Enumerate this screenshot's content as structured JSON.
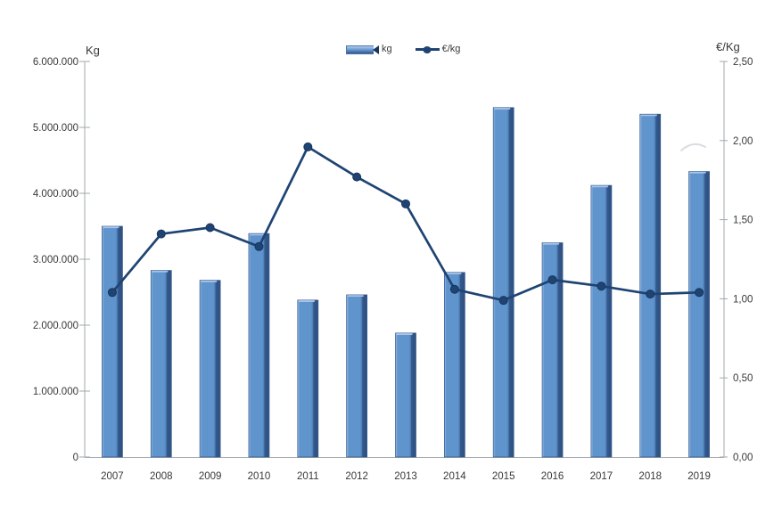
{
  "legend": {
    "items": [
      {
        "label": "kg",
        "swatch": "bar-swatch"
      },
      {
        "label": "€/kg",
        "swatch": "line-marker-swatch"
      }
    ]
  },
  "chart_data": {
    "type": "bar",
    "combo_types": [
      "bar",
      "line"
    ],
    "title": "",
    "categories": [
      "2007",
      "2008",
      "2009",
      "2010",
      "2011",
      "2012",
      "2013",
      "2014",
      "2015",
      "2016",
      "2017",
      "2018",
      "2019"
    ],
    "series": [
      {
        "name": "kg",
        "type": "bar",
        "axis": "left",
        "values": [
          3500000,
          2830000,
          2680000,
          3390000,
          2380000,
          2460000,
          1880000,
          2800000,
          5300000,
          3250000,
          4120000,
          5200000,
          4330000
        ]
      },
      {
        "name": "€/kg",
        "type": "line",
        "axis": "right",
        "values": [
          1.04,
          1.41,
          1.45,
          1.33,
          1.96,
          1.77,
          1.6,
          1.06,
          0.99,
          1.12,
          1.08,
          1.03,
          1.04
        ]
      }
    ],
    "left_axis": {
      "title": "Kg",
      "min": 0,
      "max": 6000000,
      "step": 1000000,
      "tick_labels": [
        "0",
        "1.000.000",
        "2.000.000",
        "3.000.000",
        "4.000.000",
        "5.000.000",
        "6.000.000"
      ]
    },
    "right_axis": {
      "title": "€/Kg",
      "min": 0,
      "max": 2.5,
      "step": 0.5,
      "tick_labels": [
        "0,00",
        "0,50",
        "1,00",
        "1,50",
        "2,00",
        "2,50"
      ]
    },
    "grid": false,
    "legend_position": "top-center",
    "colors": {
      "bar_fill": "#6094CD",
      "bar_highlight": "#9ABCE5",
      "bar_edge_dark": "#35598C",
      "bar_shadow": "#2E5183",
      "bar_outline": "#2F5586",
      "bar_top_cap": "#A9C5E9",
      "line": "#1F4473",
      "marker_stroke": "#16365C",
      "axis": "#A3A8AD",
      "text": "#383838"
    }
  }
}
